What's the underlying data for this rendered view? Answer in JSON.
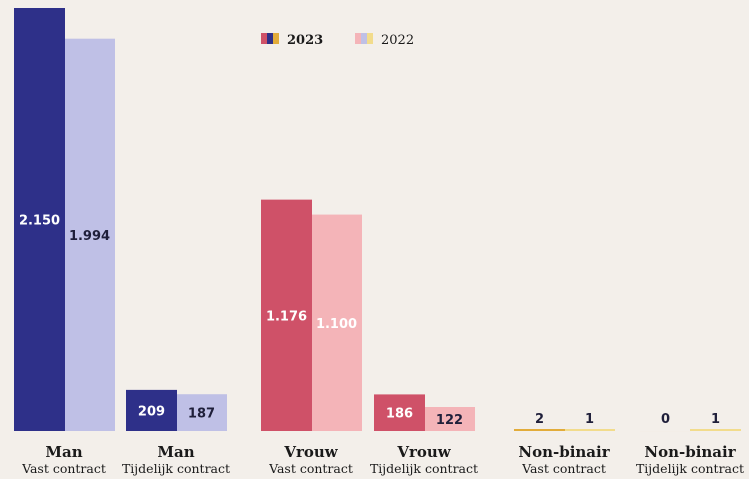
{
  "chart_data": {
    "type": "bar",
    "title": "",
    "xlabel": "",
    "ylabel": "",
    "ylim": [
      0,
      2150
    ],
    "legend_position": "top",
    "grid": false,
    "categories": [
      {
        "main": "Man",
        "sub": "Vast contract"
      },
      {
        "main": "Man",
        "sub": "Tijdelijk contract"
      },
      {
        "main": "Vrouw",
        "sub": "Vast contract"
      },
      {
        "main": "Vrouw",
        "sub": "Tijdelijk contract"
      },
      {
        "main": "Non-binair",
        "sub": "Vast contract"
      },
      {
        "main": "Non-binair",
        "sub": "Tijdelijk contract"
      }
    ],
    "series": [
      {
        "name": "2023",
        "values": [
          2150,
          209,
          1176,
          186,
          2,
          0
        ],
        "labels": [
          "2.150",
          "209",
          "1.176",
          "186",
          "2",
          "0"
        ]
      },
      {
        "name": "2022",
        "values": [
          1994,
          187,
          1100,
          122,
          1,
          1
        ],
        "labels": [
          "1.994",
          "187",
          "1.100",
          "122",
          "1",
          "1"
        ]
      }
    ],
    "colors": {
      "man_2023": "#2e3089",
      "man_2022": "#bfc0e6",
      "vrouw_2023": "#cf5168",
      "vrouw_2022": "#f4b4b8",
      "nb_2023": "#e2ac3a",
      "nb_2022": "#f2dc8c",
      "label_dark": "#1f1f3a",
      "label_light": "#ffffff"
    }
  }
}
